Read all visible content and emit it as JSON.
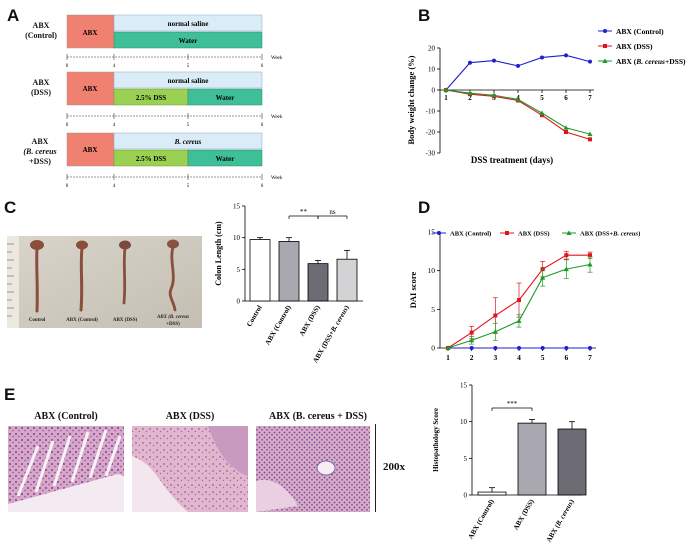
{
  "panels": {
    "A": "A",
    "B": "B",
    "C": "C",
    "D": "D",
    "E": "E"
  },
  "schematic": {
    "rows": [
      {
        "label_lines": [
          "ABX",
          "(Control)"
        ],
        "abx": "ABX",
        "top_bar": "normal saline",
        "bottom_bars": [
          "Water"
        ],
        "ticks": [
          "0",
          "4",
          "5",
          "6"
        ],
        "unit": "Week"
      },
      {
        "label_lines": [
          "ABX",
          "(DSS)"
        ],
        "abx": "ABX",
        "top_bar": "normal saline",
        "bottom_bars": [
          "2.5% DSS",
          "Water"
        ],
        "ticks": [
          "0",
          "4",
          "5",
          "6"
        ],
        "unit": "Week"
      },
      {
        "label_lines": [
          "ABX",
          "(B. cereus",
          "+DSS)"
        ],
        "abx": "ABX",
        "top_bar": "B. cereus",
        "bottom_bars": [
          "2.5% DSS",
          "Water"
        ],
        "ticks": [
          "0",
          "4",
          "5",
          "6"
        ],
        "unit": "Week"
      }
    ],
    "colors": {
      "abx": "#f08070",
      "saline": "#d9ecf8",
      "water": "#3fbf98",
      "dss": "#9bd152"
    }
  },
  "chart_data": [
    {
      "id": "B",
      "type": "line",
      "xlabel": "DSS treatment (days)",
      "ylabel": "Body weight change (%)",
      "x": [
        1,
        2,
        3,
        4,
        5,
        6,
        7
      ],
      "ylim": [
        -30,
        20
      ],
      "yticks": [
        20,
        10,
        0,
        -10,
        -20,
        -30
      ],
      "series": [
        {
          "name": "ABX (Control)",
          "color": "#1f1fd0",
          "marker": "circle",
          "values": [
            0,
            13,
            14,
            11.5,
            15.5,
            16.5,
            13.5
          ]
        },
        {
          "name": "ABX (DSS)",
          "color": "#e0141a",
          "marker": "square",
          "values": [
            0,
            -2,
            -3,
            -5,
            -12,
            -20,
            -23.5
          ]
        },
        {
          "name": "ABX (B. cereus+DSS)",
          "color": "#1f9a2a",
          "marker": "triangle",
          "values": [
            0,
            -1.5,
            -2.5,
            -4.5,
            -11,
            -18,
            -21
          ]
        }
      ]
    },
    {
      "id": "C",
      "type": "bar",
      "ylabel": "Colon Length (cm)",
      "ylim": [
        0,
        15
      ],
      "yticks": [
        0,
        5,
        10,
        15
      ],
      "categories": [
        "Control",
        "ABX (Control)",
        "ABX (DSS)",
        "ABX (DSS+B. cereus)"
      ],
      "values": [
        9.7,
        9.4,
        5.9,
        6.6
      ],
      "errors": [
        0.3,
        0.6,
        0.5,
        1.4
      ],
      "colors": [
        "#ffffff",
        "#a9a8b0",
        "#6d6c74",
        "#d3d3d5"
      ],
      "annotations": [
        {
          "from": 1,
          "to": 2,
          "text": "**"
        },
        {
          "from": 2,
          "to": 3,
          "text": "ns"
        }
      ]
    },
    {
      "id": "D",
      "type": "line",
      "ylabel": "DAI score",
      "x": [
        1,
        2,
        3,
        4,
        5,
        6,
        7
      ],
      "ylim": [
        0,
        15
      ],
      "yticks": [
        0,
        5,
        10,
        15
      ],
      "series": [
        {
          "name": "ABX (Control)",
          "color": "#1f1fd0",
          "marker": "circle",
          "values": [
            0,
            0,
            0,
            0,
            0,
            0,
            0
          ],
          "errors": [
            0,
            0,
            0,
            0,
            0,
            0,
            0
          ]
        },
        {
          "name": "ABX (DSS)",
          "color": "#e0141a",
          "marker": "square",
          "values": [
            0,
            2,
            4.2,
            6.2,
            10.2,
            12,
            12
          ],
          "errors": [
            0,
            0.8,
            2.3,
            2.2,
            1,
            0.5,
            0.4
          ]
        },
        {
          "name": "ABX (DSS+B. cereus)",
          "color": "#1f9a2a",
          "marker": "triangle",
          "values": [
            0,
            1,
            2.1,
            3.5,
            9.1,
            10.2,
            10.8
          ],
          "errors": [
            0,
            0.5,
            1.1,
            0.8,
            1.1,
            1.2,
            1
          ]
        }
      ]
    },
    {
      "id": "E",
      "type": "bar",
      "ylabel": "Histopathology Score",
      "ylim": [
        0,
        15
      ],
      "yticks": [
        0,
        5,
        10,
        15
      ],
      "categories": [
        "ABX (Control)",
        "ABX (DSS)",
        "ABX (B. cereus)"
      ],
      "values": [
        0.4,
        9.8,
        9.0
      ],
      "errors": [
        0.6,
        0.5,
        1.0
      ],
      "colors": [
        "#ffffff",
        "#a9a8b0",
        "#6d6c74"
      ],
      "annotations": [
        {
          "from": 0,
          "to": 1,
          "text": "***"
        }
      ]
    }
  ],
  "photo_c": {
    "labels": [
      "Control",
      "ABX (Control)",
      "ABX (DSS)",
      "ABX (B. cereus",
      "+DSS)"
    ]
  },
  "histology": {
    "titles": [
      "ABX (Control)",
      "ABX (DSS)",
      "ABX (B. cereus + DSS)"
    ],
    "magnification": "200x"
  }
}
